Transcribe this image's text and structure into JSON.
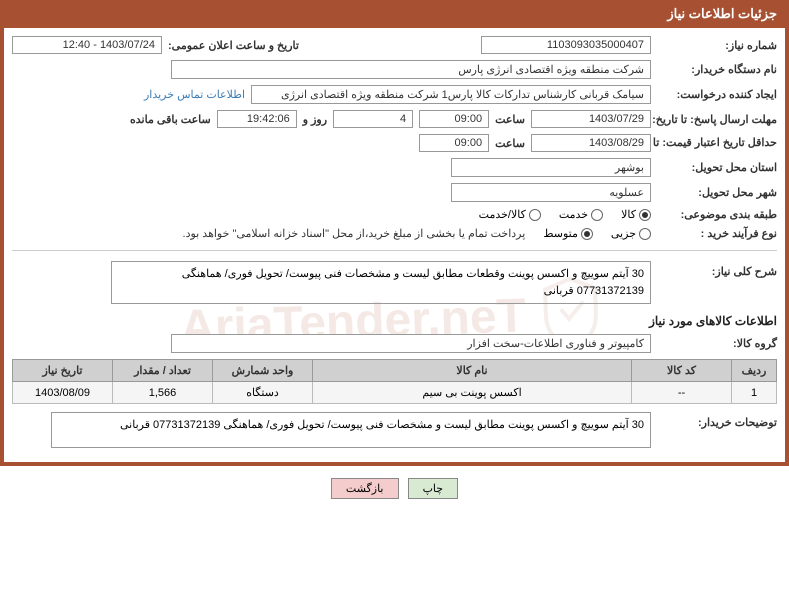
{
  "header": {
    "title": "جزئیات اطلاعات نیاز"
  },
  "fields": {
    "need_number_label": "شماره نیاز:",
    "need_number": "1103093035000407",
    "announce_date_label": "تاریخ و ساعت اعلان عمومی:",
    "announce_date": "1403/07/24 - 12:40",
    "buyer_org_label": "نام دستگاه خریدار:",
    "buyer_org": "شرکت منطقه ویژه اقتصادی انرژی پارس",
    "requester_label": "ایجاد کننده درخواست:",
    "requester": "سیامک قربانی کارشناس تدارکات کالا پارس1 شرکت منطقه ویژه اقتصادی انرژی",
    "contact_link": "اطلاعات تماس خریدار",
    "response_deadline_label": "مهلت ارسال پاسخ: تا تاریخ:",
    "response_date": "1403/07/29",
    "time_label": "ساعت",
    "response_time": "09:00",
    "days_num": "4",
    "days_label": "روز و",
    "remain_time": "19:42:06",
    "remain_label": "ساعت باقی مانده",
    "price_validity_label": "حداقل تاریخ اعتبار قیمت: تا تاریخ:",
    "price_validity_date": "1403/08/29",
    "price_validity_time": "09:00",
    "delivery_province_label": "استان محل تحویل:",
    "delivery_province": "بوشهر",
    "delivery_city_label": "شهر محل تحویل:",
    "delivery_city": "عسلویه",
    "category_label": "طبقه بندی موضوعی:",
    "cat_goods": "کالا",
    "cat_service": "خدمت",
    "cat_goods_service": "کالا/خدمت",
    "purchase_type_label": "نوع فرآیند خرید :",
    "pt_partial": "جزیی",
    "pt_medium": "متوسط",
    "purchase_note": "پرداخت تمام یا بخشی از مبلغ خرید،از محل \"اسناد خزانه اسلامی\" خواهد بود.",
    "need_summary_label": "شرح کلی نیاز:",
    "need_summary": "30 آیتم سوییچ و اکسس پوینت وقطعات مطابق لیست و مشخصات فنی پیوست/ تحویل فوری/ هماهنگی 07731372139 قربانی",
    "goods_section_title": "اطلاعات کالاهای مورد نیاز",
    "goods_group_label": "گروه کالا:",
    "goods_group": "کامپیوتر و فناوری اطلاعات-سخت افزار",
    "buyer_notes_label": "توضیحات خریدار:",
    "buyer_notes": "30 آیتم سوییچ و اکسس پوینت مطابق لیست و مشخصات فنی پیوست/ تحویل فوری/ هماهنگی 07731372139 قربانی"
  },
  "table": {
    "headers": {
      "row": "ردیف",
      "code": "کد کالا",
      "name": "نام کالا",
      "unit": "واحد شمارش",
      "qty": "تعداد / مقدار",
      "need_date": "تاریخ نیاز"
    },
    "rows": [
      {
        "row": "1",
        "code": "--",
        "name": "اکسس پوینت بی سیم",
        "unit": "دستگاه",
        "qty": "1,566",
        "need_date": "1403/08/09"
      }
    ]
  },
  "buttons": {
    "print": "چاپ",
    "back": "بازگشت"
  },
  "watermark": "AriaTender.neT"
}
